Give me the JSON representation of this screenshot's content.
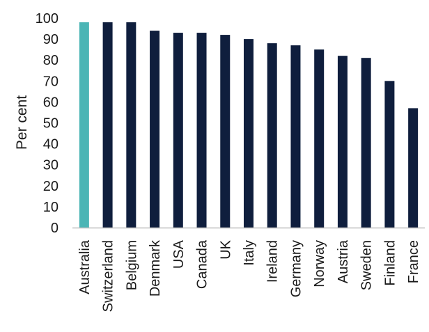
{
  "chart_data": {
    "type": "bar",
    "title": "",
    "xlabel": "",
    "ylabel": "Per cent",
    "ylim": [
      0,
      100
    ],
    "yticks": [
      0,
      10,
      20,
      30,
      40,
      50,
      60,
      70,
      80,
      90,
      100
    ],
    "grid": false,
    "legend": "none",
    "categories": [
      "Australia",
      "Switzerland",
      "Belgium",
      "Denmark",
      "USA",
      "Canada",
      "UK",
      "Italy",
      "Ireland",
      "Germany",
      "Norway",
      "Austria",
      "Sweden",
      "Finland",
      "France"
    ],
    "values": [
      98,
      98,
      98,
      94,
      93,
      93,
      92,
      90,
      88,
      87,
      85,
      82,
      81,
      70,
      57
    ],
    "colors": {
      "highlight": "#4bb5b5",
      "default": "#0f1e3d",
      "axis": "#bfbfbf",
      "text": "#1a1a1a"
    },
    "highlight_category": "Australia"
  }
}
